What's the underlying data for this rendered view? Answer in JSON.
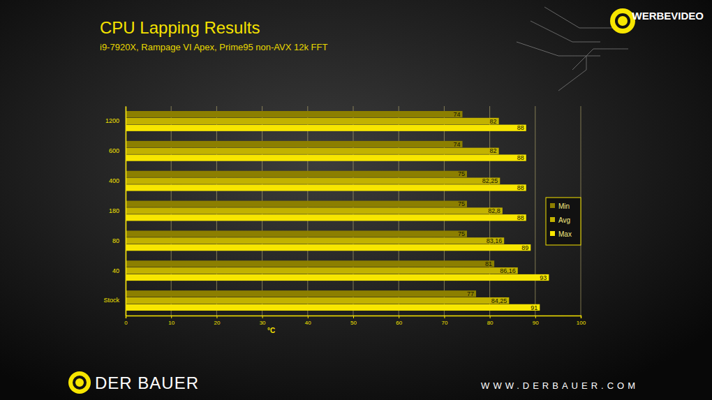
{
  "chart_data": {
    "type": "bar",
    "orientation": "horizontal",
    "title": "CPU Lapping Results",
    "subtitle": "i9-7920X, Rampage VI Apex, Prime95 non-AVX 12k FFT",
    "xlabel": "°C",
    "categories": [
      "1200",
      "600",
      "400",
      "180",
      "80",
      "40",
      "Stock"
    ],
    "series": [
      {
        "name": "Min",
        "color": "#8c7f00",
        "values": [
          74,
          74,
          75,
          75,
          75,
          81,
          77
        ]
      },
      {
        "name": "Avg",
        "color": "#c2b200",
        "values": [
          82,
          82,
          82.25,
          82.8,
          83.16,
          86.16,
          84.25
        ],
        "value_labels": [
          "82",
          "82",
          "82,25",
          "82,8",
          "83,16",
          "86,16",
          "84,25"
        ]
      },
      {
        "name": "Max",
        "color": "#f7e600",
        "values": [
          88,
          88,
          88,
          88,
          89,
          93,
          91
        ]
      }
    ],
    "xlim": [
      0,
      100
    ],
    "xticks": [
      0,
      10,
      20,
      30,
      40,
      50,
      60,
      70,
      80,
      90,
      100
    ],
    "grid": true,
    "legend": "right",
    "data_labels": true,
    "annotations": [
      "WERBEVIDEO",
      "DER BAUER",
      "WWW.DERBAUER.COM"
    ]
  }
}
